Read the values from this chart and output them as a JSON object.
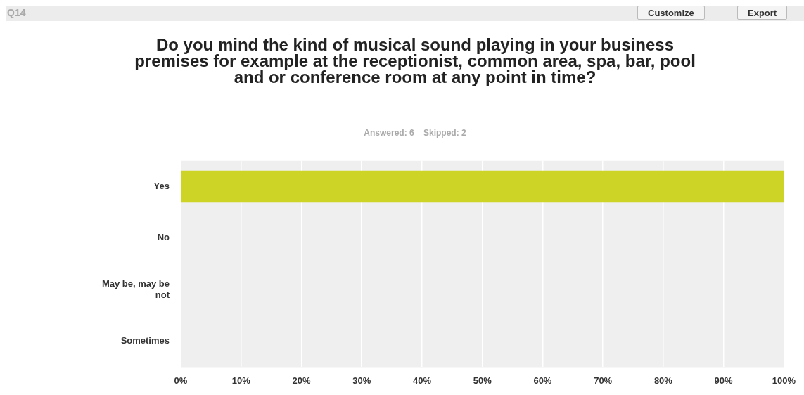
{
  "chart_data": {
    "type": "bar",
    "orientation": "horizontal",
    "title": "Do you mind the kind of musical sound playing in your business premises for example at the receptionist,  common area, spa, bar, pool and or conference room at any point in time?",
    "subtitle": "Answered: 6    Skipped: 2",
    "categories": [
      "Yes",
      "No",
      "May be, may be not",
      "Sometimes"
    ],
    "values": [
      100,
      0,
      0,
      0
    ],
    "color": "#cdd426",
    "xlim": [
      0,
      100
    ],
    "xticks": [
      {
        "value": 0,
        "label": "0%"
      },
      {
        "value": 10,
        "label": "10%"
      },
      {
        "value": 20,
        "label": "20%"
      },
      {
        "value": 30,
        "label": "30%"
      },
      {
        "value": 40,
        "label": "40%"
      },
      {
        "value": 50,
        "label": "50%"
      },
      {
        "value": 60,
        "label": "60%"
      },
      {
        "value": 70,
        "label": "70%"
      },
      {
        "value": 80,
        "label": "80%"
      },
      {
        "value": 90,
        "label": "90%"
      },
      {
        "value": 100,
        "label": "100%"
      }
    ],
    "grid": "x",
    "legend": false,
    "annotations": [
      "Q14",
      "Customize",
      "Export"
    ]
  }
}
